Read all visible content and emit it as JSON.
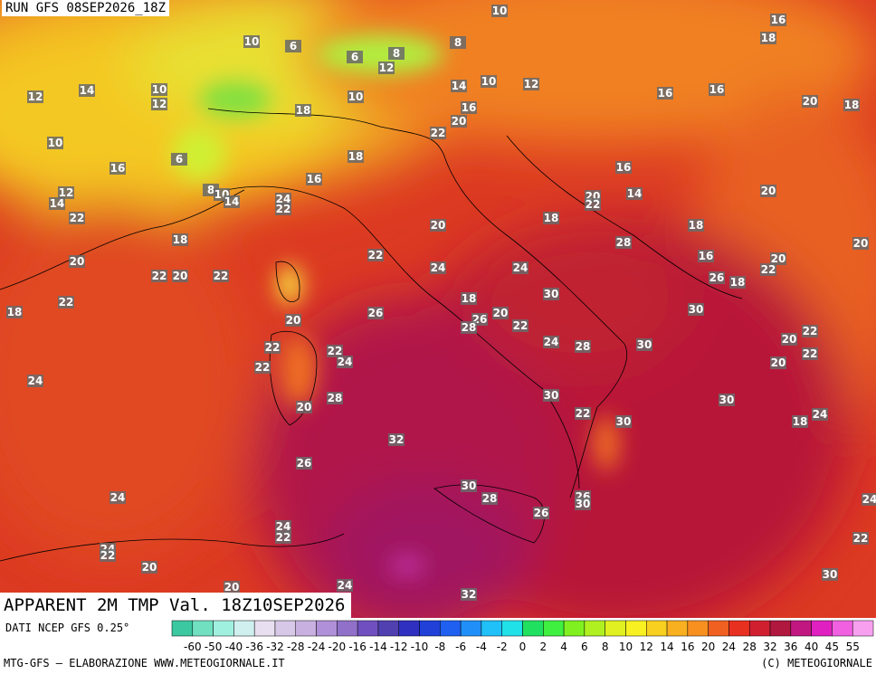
{
  "header": {
    "run": "RUN GFS 08SEP2026_18Z",
    "title": "APPARENT 2M TMP Val. 18Z10SEP2026",
    "source": "DATI NCEP GFS 0.25°"
  },
  "footer": {
    "left": "MTG-GFS — ELABORAZIONE WWW.METEOGIORNALE.IT",
    "right": "(C) METEOGIORNALE"
  },
  "colorbar": {
    "labels": [
      -60,
      -50,
      -40,
      -36,
      -32,
      -28,
      -24,
      -20,
      -16,
      -14,
      -12,
      -10,
      -8,
      -6,
      -4,
      -2,
      0,
      2,
      4,
      6,
      8,
      10,
      12,
      14,
      16,
      20,
      24,
      28,
      32,
      36,
      40,
      45,
      55
    ],
    "colors": [
      "#3cc8a0",
      "#70e0c0",
      "#a0f0e0",
      "#d0f0f0",
      "#e8e0f0",
      "#d8c8e8",
      "#c8b0e0",
      "#b090d8",
      "#9070c8",
      "#7050c0",
      "#5040b0",
      "#3030c0",
      "#2040d8",
      "#2060f0",
      "#2090f8",
      "#20c0f8",
      "#20e0e8",
      "#20e060",
      "#40f040",
      "#80f020",
      "#b0f020",
      "#e0f020",
      "#f8f020",
      "#f8d020",
      "#f8b020",
      "#f89020",
      "#f06020",
      "#e83020",
      "#d02030",
      "#b01840",
      "#c01880",
      "#e020c0",
      "#f060e0",
      "#f8a0f0"
    ]
  },
  "map": {
    "labels": [
      10,
      16,
      18,
      10,
      6,
      8,
      6,
      8,
      12,
      12,
      14,
      10,
      12,
      14,
      10,
      12,
      16,
      16,
      20,
      18,
      10,
      18,
      16,
      20,
      22,
      10,
      6,
      16,
      18,
      16,
      16,
      12,
      14,
      8,
      10,
      14,
      24,
      22,
      20,
      22,
      14,
      20,
      22,
      18,
      20,
      18,
      18,
      28,
      20,
      22,
      16,
      20,
      20,
      24,
      24,
      22,
      26,
      18,
      22,
      20,
      22,
      18,
      22,
      18,
      30,
      30,
      26,
      20,
      26,
      20,
      28,
      22,
      22,
      20,
      22,
      24,
      28,
      30,
      22,
      22,
      24,
      22,
      20,
      24,
      28,
      30,
      30,
      20,
      22,
      30,
      18,
      24,
      32,
      26,
      30,
      28,
      24,
      26,
      30,
      26,
      24,
      24,
      22,
      22,
      24,
      22,
      20,
      30,
      20,
      24,
      32
    ]
  }
}
